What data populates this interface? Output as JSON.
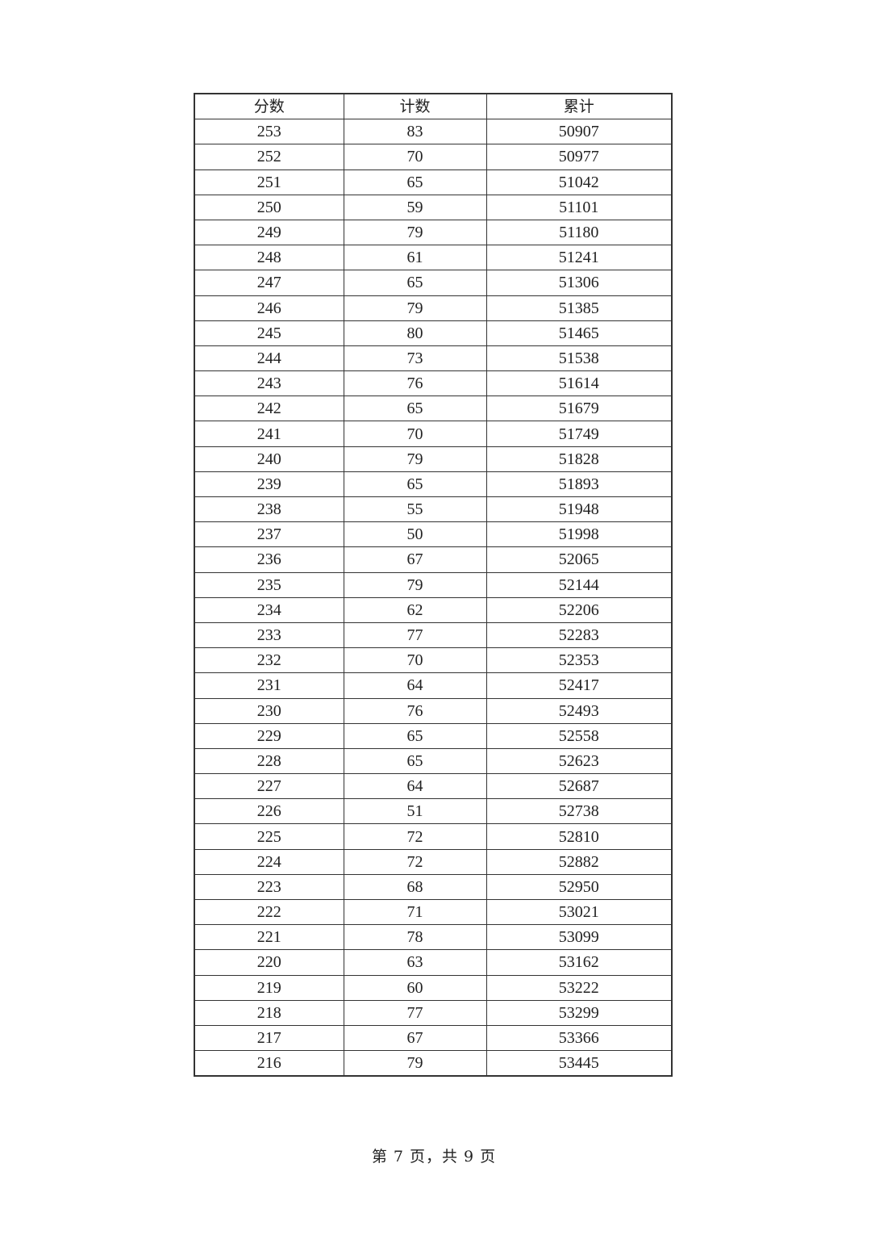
{
  "table": {
    "headers": [
      "分数",
      "计数",
      "累计"
    ],
    "rows": [
      [
        "253",
        "83",
        "50907"
      ],
      [
        "252",
        "70",
        "50977"
      ],
      [
        "251",
        "65",
        "51042"
      ],
      [
        "250",
        "59",
        "51101"
      ],
      [
        "249",
        "79",
        "51180"
      ],
      [
        "248",
        "61",
        "51241"
      ],
      [
        "247",
        "65",
        "51306"
      ],
      [
        "246",
        "79",
        "51385"
      ],
      [
        "245",
        "80",
        "51465"
      ],
      [
        "244",
        "73",
        "51538"
      ],
      [
        "243",
        "76",
        "51614"
      ],
      [
        "242",
        "65",
        "51679"
      ],
      [
        "241",
        "70",
        "51749"
      ],
      [
        "240",
        "79",
        "51828"
      ],
      [
        "239",
        "65",
        "51893"
      ],
      [
        "238",
        "55",
        "51948"
      ],
      [
        "237",
        "50",
        "51998"
      ],
      [
        "236",
        "67",
        "52065"
      ],
      [
        "235",
        "79",
        "52144"
      ],
      [
        "234",
        "62",
        "52206"
      ],
      [
        "233",
        "77",
        "52283"
      ],
      [
        "232",
        "70",
        "52353"
      ],
      [
        "231",
        "64",
        "52417"
      ],
      [
        "230",
        "76",
        "52493"
      ],
      [
        "229",
        "65",
        "52558"
      ],
      [
        "228",
        "65",
        "52623"
      ],
      [
        "227",
        "64",
        "52687"
      ],
      [
        "226",
        "51",
        "52738"
      ],
      [
        "225",
        "72",
        "52810"
      ],
      [
        "224",
        "72",
        "52882"
      ],
      [
        "223",
        "68",
        "52950"
      ],
      [
        "222",
        "71",
        "53021"
      ],
      [
        "221",
        "78",
        "53099"
      ],
      [
        "220",
        "63",
        "53162"
      ],
      [
        "219",
        "60",
        "53222"
      ],
      [
        "218",
        "77",
        "53299"
      ],
      [
        "217",
        "67",
        "53366"
      ],
      [
        "216",
        "79",
        "53445"
      ]
    ]
  },
  "footer": {
    "page_text": "第 7 页，共 9 页"
  }
}
